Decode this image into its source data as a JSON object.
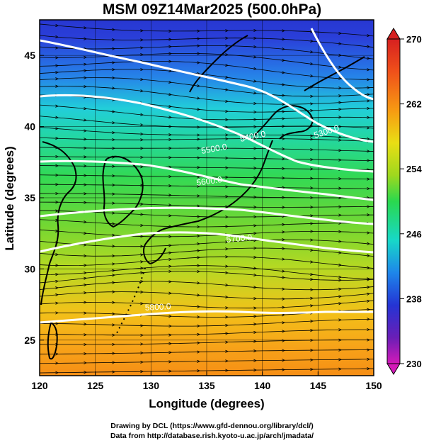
{
  "title": "MSM 09Z14Mar2025 (500.0hPa)",
  "xlabel": "Longitude (degrees)",
  "ylabel": "Latitude  (degrees)",
  "x_ticks": [
    "120",
    "125",
    "130",
    "135",
    "140",
    "145",
    "150"
  ],
  "y_ticks": [
    "25",
    "30",
    "35",
    "40",
    "45"
  ],
  "xlim": [
    120,
    150
  ],
  "ylim": [
    22.5,
    47.5
  ],
  "colorbar": {
    "ticks": [
      "230",
      "238",
      "246",
      "254",
      "262",
      "270"
    ],
    "range": [
      230,
      270
    ]
  },
  "contours": [
    {
      "label": "5300.0",
      "value": 5300
    },
    {
      "label": "5400.0",
      "value": 5400
    },
    {
      "label": "5500.0",
      "value": 5500
    },
    {
      "label": "5600.0",
      "value": 5600
    },
    {
      "label": "5700.0",
      "value": 5700
    },
    {
      "label": "5800.0",
      "value": 5800
    }
  ],
  "credits": {
    "line1": "Drawing by DCL (https://www.gfd-dennou.org/library/dcl/)",
    "line2": "Data from http://database.rish.kyoto-u.ac.jp/arch/jmadata/"
  }
}
